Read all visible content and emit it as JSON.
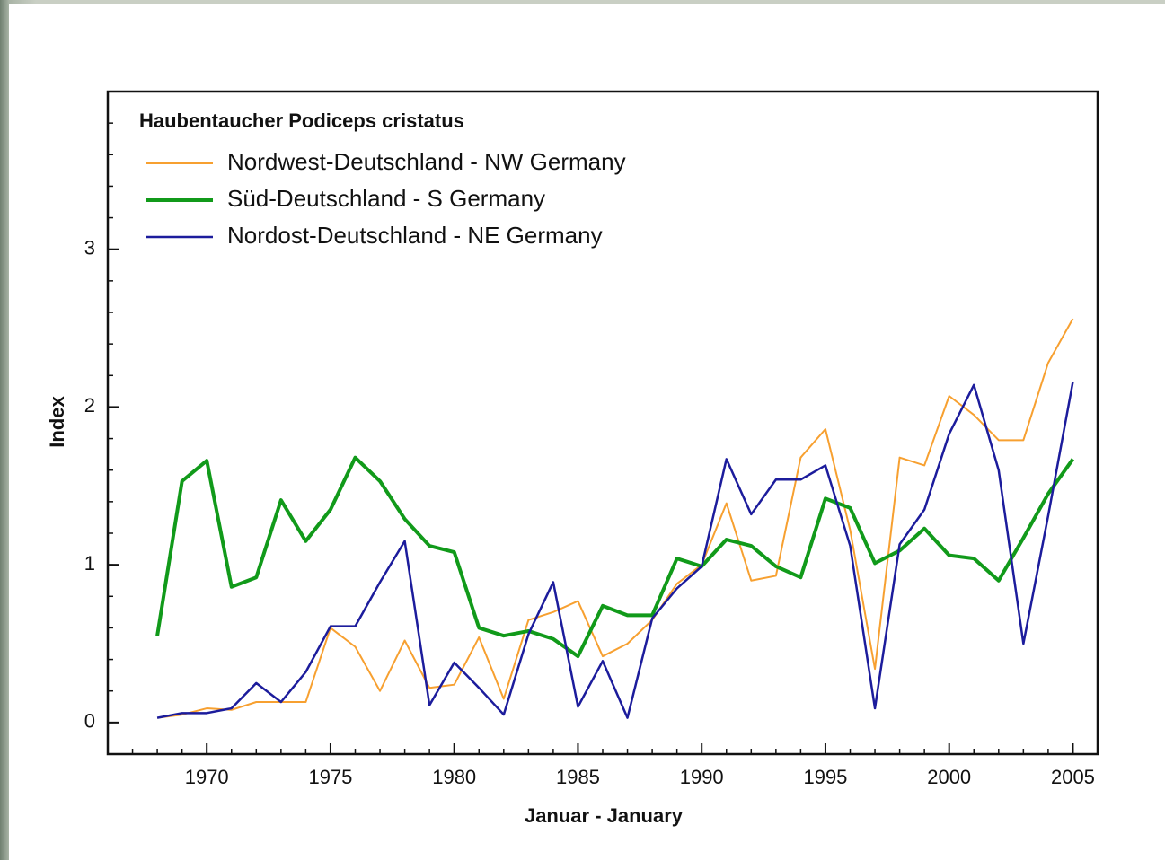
{
  "chart_data": {
    "type": "line",
    "legend_title": "Haubentaucher Podiceps cristatus",
    "x_label": "Januar - January",
    "y_label": "Index",
    "x": [
      1968,
      1969,
      1970,
      1971,
      1972,
      1973,
      1974,
      1975,
      1976,
      1977,
      1978,
      1979,
      1980,
      1981,
      1982,
      1983,
      1984,
      1985,
      1986,
      1987,
      1988,
      1989,
      1990,
      1991,
      1992,
      1993,
      1994,
      1995,
      1996,
      1997,
      1998,
      1999,
      2000,
      2001,
      2002,
      2003,
      2004,
      2005
    ],
    "series": [
      {
        "name": "Nordwest-Deutschland - NW Germany",
        "color": "#f7a030",
        "width": 2,
        "values": [
          0.03,
          0.05,
          0.09,
          0.08,
          0.13,
          0.13,
          0.13,
          0.6,
          0.48,
          0.2,
          0.52,
          0.22,
          0.24,
          0.54,
          0.15,
          0.65,
          0.7,
          0.77,
          0.42,
          0.5,
          0.65,
          0.88,
          1.0,
          1.39,
          0.9,
          0.93,
          1.68,
          1.86,
          1.22,
          0.34,
          1.68,
          1.63,
          2.07,
          1.95,
          1.79,
          1.79,
          2.28,
          2.56
        ]
      },
      {
        "name": "Süd-Deutschland - S Germany",
        "color": "#119a1a",
        "width": 4,
        "values": [
          0.55,
          1.53,
          1.66,
          0.86,
          0.92,
          1.41,
          1.15,
          1.35,
          1.68,
          1.53,
          1.29,
          1.12,
          1.08,
          0.6,
          0.55,
          0.58,
          0.53,
          0.42,
          0.74,
          0.68,
          0.68,
          1.04,
          0.99,
          1.16,
          1.12,
          0.99,
          0.92,
          1.42,
          1.36,
          1.01,
          1.09,
          1.23,
          1.06,
          1.04,
          0.9,
          1.17,
          1.45,
          1.67
        ]
      },
      {
        "name": "Nordost-Deutschland - NE Germany",
        "color": "#1c1c9c",
        "width": 2.5,
        "values": [
          0.03,
          0.06,
          0.06,
          0.09,
          0.25,
          0.13,
          0.32,
          0.61,
          0.61,
          0.89,
          1.15,
          0.11,
          0.38,
          0.22,
          0.05,
          0.56,
          0.89,
          0.1,
          0.39,
          0.03,
          0.66,
          0.85,
          0.99,
          1.67,
          1.32,
          1.54,
          1.54,
          1.63,
          1.12,
          0.09,
          1.13,
          1.35,
          1.83,
          2.14,
          1.6,
          0.5,
          1.31,
          2.16
        ]
      }
    ],
    "xlim": [
      1966,
      2006
    ],
    "ylim": [
      -0.2,
      4
    ],
    "xticks": [
      1970,
      1975,
      1980,
      1985,
      1990,
      1995,
      2000,
      2005
    ],
    "yticks": [
      0,
      1,
      2,
      3
    ],
    "legend": "upper left"
  }
}
